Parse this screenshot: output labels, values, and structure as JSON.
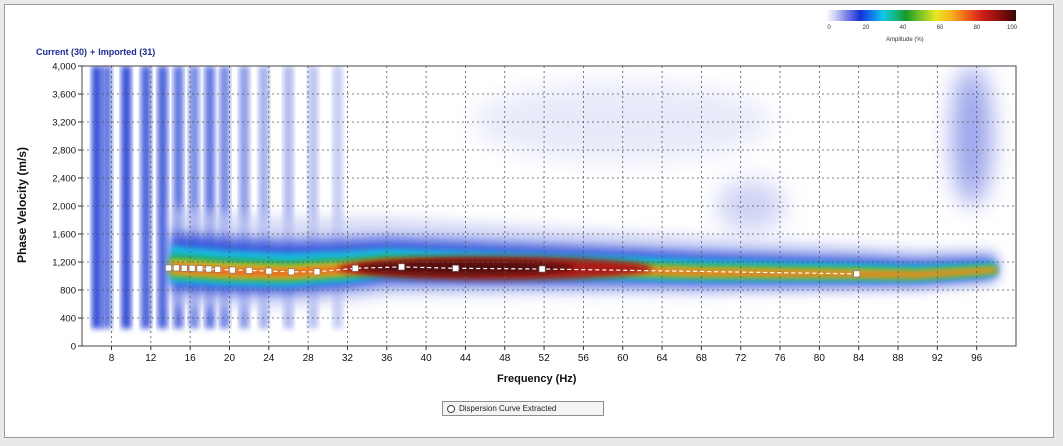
{
  "chart_data": {
    "type": "heatmap",
    "title_parts": [
      "Current (30)",
      "+",
      "Imported (31)"
    ],
    "xlabel": "Frequency (Hz)",
    "ylabel": "Phase Velocity (m/s)",
    "xlim": [
      5,
      100
    ],
    "ylim": [
      0,
      4000
    ],
    "x_ticks": [
      "8",
      "12",
      "16",
      "20",
      "24",
      "28",
      "32",
      "36",
      "40",
      "44",
      "48",
      "52",
      "56",
      "60",
      "64",
      "68",
      "72",
      "76",
      "80",
      "84",
      "88",
      "92",
      "96"
    ],
    "x_tick_values": [
      8,
      12,
      16,
      20,
      24,
      28,
      32,
      36,
      40,
      44,
      48,
      52,
      56,
      60,
      64,
      68,
      72,
      76,
      80,
      84,
      88,
      92,
      96
    ],
    "y_ticks": [
      "0",
      "400",
      "800",
      "1,200",
      "1,600",
      "2,000",
      "2,400",
      "2,800",
      "3,200",
      "3,600",
      "4,000"
    ],
    "y_tick_values": [
      0,
      400,
      800,
      1200,
      1600,
      2000,
      2400,
      2800,
      3200,
      3600,
      4000
    ],
    "grid": true,
    "colorbar": {
      "label": "Amplitude (%)",
      "ticks": [
        "0",
        "20",
        "40",
        "60",
        "80",
        "100"
      ],
      "colors": [
        "#ffffff",
        "#1732d4",
        "#11c8e8",
        "#169a2a",
        "#e8e824",
        "#d11d1a",
        "#3a0606"
      ]
    },
    "ridge": {
      "x": [
        14,
        20,
        26,
        32,
        36,
        44,
        52,
        60,
        68,
        76,
        84,
        90,
        96,
        98
      ],
      "y": [
        1100,
        1050,
        1030,
        1080,
        1130,
        1110,
        1090,
        1070,
        1040,
        1030,
        1020,
        1010,
        1060,
        1080
      ]
    },
    "dispersion_points": {
      "name": "Dispersion Curve Extracted",
      "x": [
        13.8,
        14.6,
        15.4,
        16.2,
        17.0,
        17.9,
        18.8,
        20.3,
        22.0,
        24.0,
        26.3,
        28.9,
        32.8,
        37.5,
        43.0,
        51.8,
        83.8
      ],
      "y": [
        1115,
        1115,
        1110,
        1110,
        1105,
        1100,
        1095,
        1085,
        1080,
        1070,
        1060,
        1060,
        1110,
        1130,
        1110,
        1100,
        1030
      ]
    },
    "legend": [
      "Dispersion Curve Extracted"
    ],
    "legend_position": "bottom-center"
  }
}
